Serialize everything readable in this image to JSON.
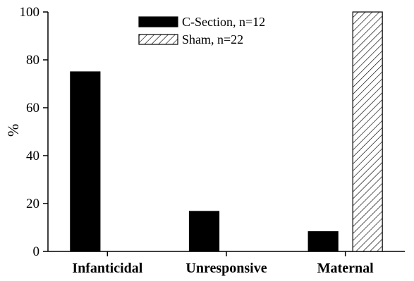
{
  "chart_data": {
    "type": "bar",
    "title": "",
    "xlabel": "",
    "ylabel": "%",
    "ylim": [
      0,
      100
    ],
    "yticks": [
      0,
      20,
      40,
      60,
      80,
      100
    ],
    "categories": [
      "Infanticidal",
      "Unresponsive",
      "Maternal"
    ],
    "series": [
      {
        "name": "C-Section, n=12",
        "fill": "solid",
        "color": "#000000",
        "values": [
          75,
          16.7,
          8.3
        ]
      },
      {
        "name": "Sham, n=22",
        "fill": "diagonal-hatch",
        "color": "#000000",
        "values": [
          0,
          0,
          100
        ]
      }
    ],
    "legend_position": "top-center",
    "grid": false
  }
}
